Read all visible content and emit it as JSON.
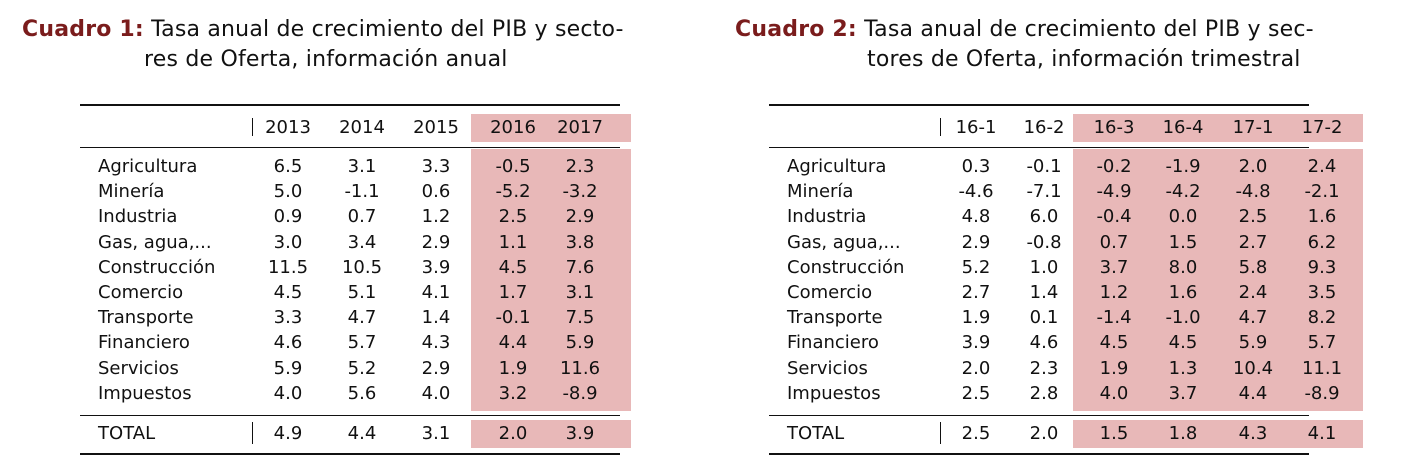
{
  "table1": {
    "label": "Cuadro 1:",
    "title_line1": "Tasa anual de crecimiento del PIB y secto-",
    "title_line2": "res de Oferta, información anual",
    "columns": [
      "2013",
      "2014",
      "2015",
      "2016",
      "2017"
    ],
    "rows": [
      {
        "label": "Agricultura",
        "values": [
          "6.5",
          "3.1",
          "3.3",
          "-0.5",
          "2.3"
        ]
      },
      {
        "label": "Minería",
        "values": [
          "5.0",
          "-1.1",
          "0.6",
          "-5.2",
          "-3.2"
        ]
      },
      {
        "label": "Industria",
        "values": [
          "0.9",
          "0.7",
          "1.2",
          "2.5",
          "2.9"
        ]
      },
      {
        "label": "Gas, agua,...",
        "values": [
          "3.0",
          "3.4",
          "2.9",
          "1.1",
          "3.8"
        ]
      },
      {
        "label": "Construcción",
        "values": [
          "11.5",
          "10.5",
          "3.9",
          "4.5",
          "7.6"
        ]
      },
      {
        "label": "Comercio",
        "values": [
          "4.5",
          "5.1",
          "4.1",
          "1.7",
          "3.1"
        ]
      },
      {
        "label": "Transporte",
        "values": [
          "3.3",
          "4.7",
          "1.4",
          "-0.1",
          "7.5"
        ]
      },
      {
        "label": "Financiero",
        "values": [
          "4.6",
          "5.7",
          "4.3",
          "4.4",
          "5.9"
        ]
      },
      {
        "label": "Servicios",
        "values": [
          "5.9",
          "5.2",
          "2.9",
          "1.9",
          "11.6"
        ]
      },
      {
        "label": "Impuestos",
        "values": [
          "4.0",
          "5.6",
          "4.0",
          "3.2",
          "-8.9"
        ]
      }
    ],
    "total": {
      "label": "TOTAL",
      "values": [
        "4.9",
        "4.4",
        "3.1",
        "2.0",
        "3.9"
      ]
    },
    "highlight_color": "#e8b8b8"
  },
  "table2": {
    "label": "Cuadro 2:",
    "title_line1": "Tasa anual de crecimiento del PIB y sec-",
    "title_line2": "tores de Oferta, información trimestral",
    "columns": [
      "16-1",
      "16-2",
      "16-3",
      "16-4",
      "17-1",
      "17-2"
    ],
    "rows": [
      {
        "label": "Agricultura",
        "values": [
          "0.3",
          "-0.1",
          "-0.2",
          "-1.9",
          "2.0",
          "2.4"
        ]
      },
      {
        "label": "Minería",
        "values": [
          "-4.6",
          "-7.1",
          "-4.9",
          "-4.2",
          "-4.8",
          "-2.1"
        ]
      },
      {
        "label": "Industria",
        "values": [
          "4.8",
          "6.0",
          "-0.4",
          "0.0",
          "2.5",
          "1.6"
        ]
      },
      {
        "label": "Gas, agua,...",
        "values": [
          "2.9",
          "-0.8",
          "0.7",
          "1.5",
          "2.7",
          "6.2"
        ]
      },
      {
        "label": "Construcción",
        "values": [
          "5.2",
          "1.0",
          "3.7",
          "8.0",
          "5.8",
          "9.3"
        ]
      },
      {
        "label": "Comercio",
        "values": [
          "2.7",
          "1.4",
          "1.2",
          "1.6",
          "2.4",
          "3.5"
        ]
      },
      {
        "label": "Transporte",
        "values": [
          "1.9",
          "0.1",
          "-1.4",
          "-1.0",
          "4.7",
          "8.2"
        ]
      },
      {
        "label": "Financiero",
        "values": [
          "3.9",
          "4.6",
          "4.5",
          "4.5",
          "5.9",
          "5.7"
        ]
      },
      {
        "label": "Servicios",
        "values": [
          "2.0",
          "2.3",
          "1.9",
          "1.3",
          "10.4",
          "11.1"
        ]
      },
      {
        "label": "Impuestos",
        "values": [
          "2.5",
          "2.8",
          "4.0",
          "3.7",
          "4.4",
          "-8.9"
        ]
      }
    ],
    "total": {
      "label": "TOTAL",
      "values": [
        "2.5",
        "2.0",
        "1.5",
        "1.8",
        "4.3",
        "4.1"
      ]
    },
    "highlight_color": "#e8b8b8"
  }
}
